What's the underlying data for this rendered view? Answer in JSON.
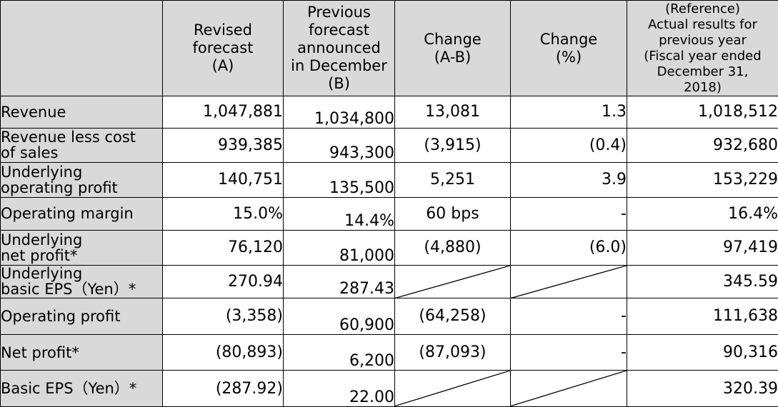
{
  "headers": {
    "revised": "Revised\nforecast\n(A)",
    "previous": "Previous\nforecast\nannounced\nin December\n(B)",
    "change_abs": "Change\n(A-B)",
    "change_pct": "Change\n(%)",
    "reference": "(Reference)\nActual results for\nprevious year\n(Fiscal year ended\nDecember 31,\n2018)"
  },
  "rows": [
    {
      "label": "Revenue",
      "revised": "1,047,881",
      "previous": "1,034,800",
      "change_abs": "13,081",
      "change_pct": "1.3",
      "reference": "1,018,512"
    },
    {
      "label": "Revenue less cost\nof sales",
      "revised": "939,385",
      "previous": "943,300",
      "change_abs": "(3,915)",
      "change_pct": "(0.4)",
      "reference": "932,680"
    },
    {
      "label": "Underlying\noperating profit",
      "revised": "140,751",
      "previous": "135,500",
      "change_abs": "5,251",
      "change_pct": "3.9",
      "reference": "153,229"
    },
    {
      "label": "Operating margin",
      "revised": "15.0%",
      "previous": "14.4%",
      "change_abs": "60  bps",
      "change_pct": "-",
      "reference": "16.4%"
    },
    {
      "label": "Underlying\nnet profit*",
      "revised": "76,120",
      "previous": "81,000",
      "change_abs": "(4,880)",
      "change_pct": "(6.0)",
      "reference": "97,419"
    },
    {
      "label": "Underlying\nbasic EPS（Yen）*",
      "revised": "270.94",
      "previous": "287.43",
      "change_abs": null,
      "change_pct": null,
      "reference": "345.59"
    },
    {
      "label": "Operating profit",
      "revised": "(3,358)",
      "previous": "60,900",
      "change_abs": "(64,258)",
      "change_pct": "-",
      "reference": "111,638"
    },
    {
      "label": "Net profit*",
      "revised": "(80,893)",
      "previous": "6,200",
      "change_abs": "(87,093)",
      "change_pct": "-",
      "reference": "90,316"
    },
    {
      "label": "Basic EPS（Yen）*",
      "revised": "(287.92)",
      "previous": "22.00",
      "change_abs": null,
      "change_pct": null,
      "reference": "320.39"
    }
  ]
}
